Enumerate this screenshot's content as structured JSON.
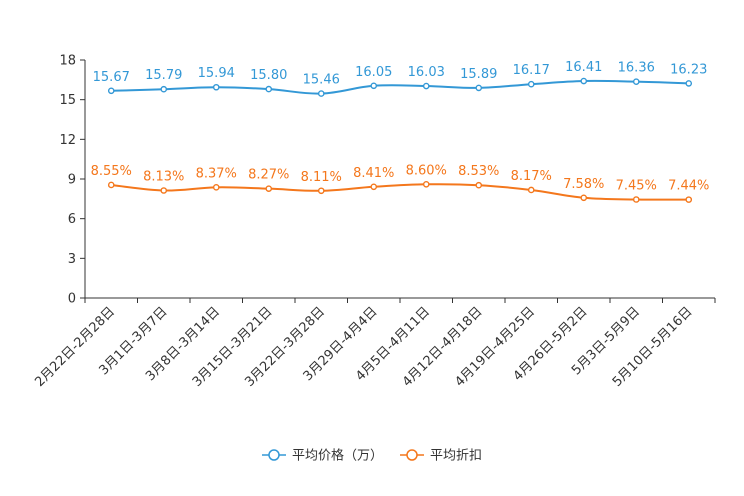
{
  "chart_data": {
    "type": "line",
    "categories": [
      "2月22日-2月28日",
      "3月1日-3月7日",
      "3月8日-3月14日",
      "3月15日-3月21日",
      "3月22日-3月28日",
      "3月29日-4月4日",
      "4月5日-4月11日",
      "4月12日-4月18日",
      "4月19日-4月25日",
      "4月26日-5月2日",
      "5月3日-5月9日",
      "5月10日-5月16日"
    ],
    "y_ticks": [
      0,
      3,
      6,
      9,
      12,
      15,
      18
    ],
    "ylim": [
      0,
      18
    ],
    "series": [
      {
        "name": "平均价格（万）",
        "color": "#3398d6",
        "values": [
          15.67,
          15.79,
          15.94,
          15.8,
          15.46,
          16.05,
          16.03,
          15.89,
          16.17,
          16.41,
          16.36,
          16.23
        ],
        "labels": [
          "15.67",
          "15.79",
          "15.94",
          "15.80",
          "15.46",
          "16.05",
          "16.03",
          "15.89",
          "16.17",
          "16.41",
          "16.36",
          "16.23"
        ]
      },
      {
        "name": "平均折扣",
        "color": "#f4771c",
        "values": [
          8.55,
          8.13,
          8.37,
          8.27,
          8.11,
          8.41,
          8.6,
          8.53,
          8.17,
          7.58,
          7.45,
          7.44
        ],
        "labels": [
          "8.55%",
          "8.13%",
          "8.37%",
          "8.27%",
          "8.11%",
          "8.41%",
          "8.60%",
          "8.53%",
          "8.17%",
          "7.58%",
          "7.45%",
          "7.44%"
        ]
      }
    ],
    "legend_position": "bottom-center",
    "grid": false
  }
}
